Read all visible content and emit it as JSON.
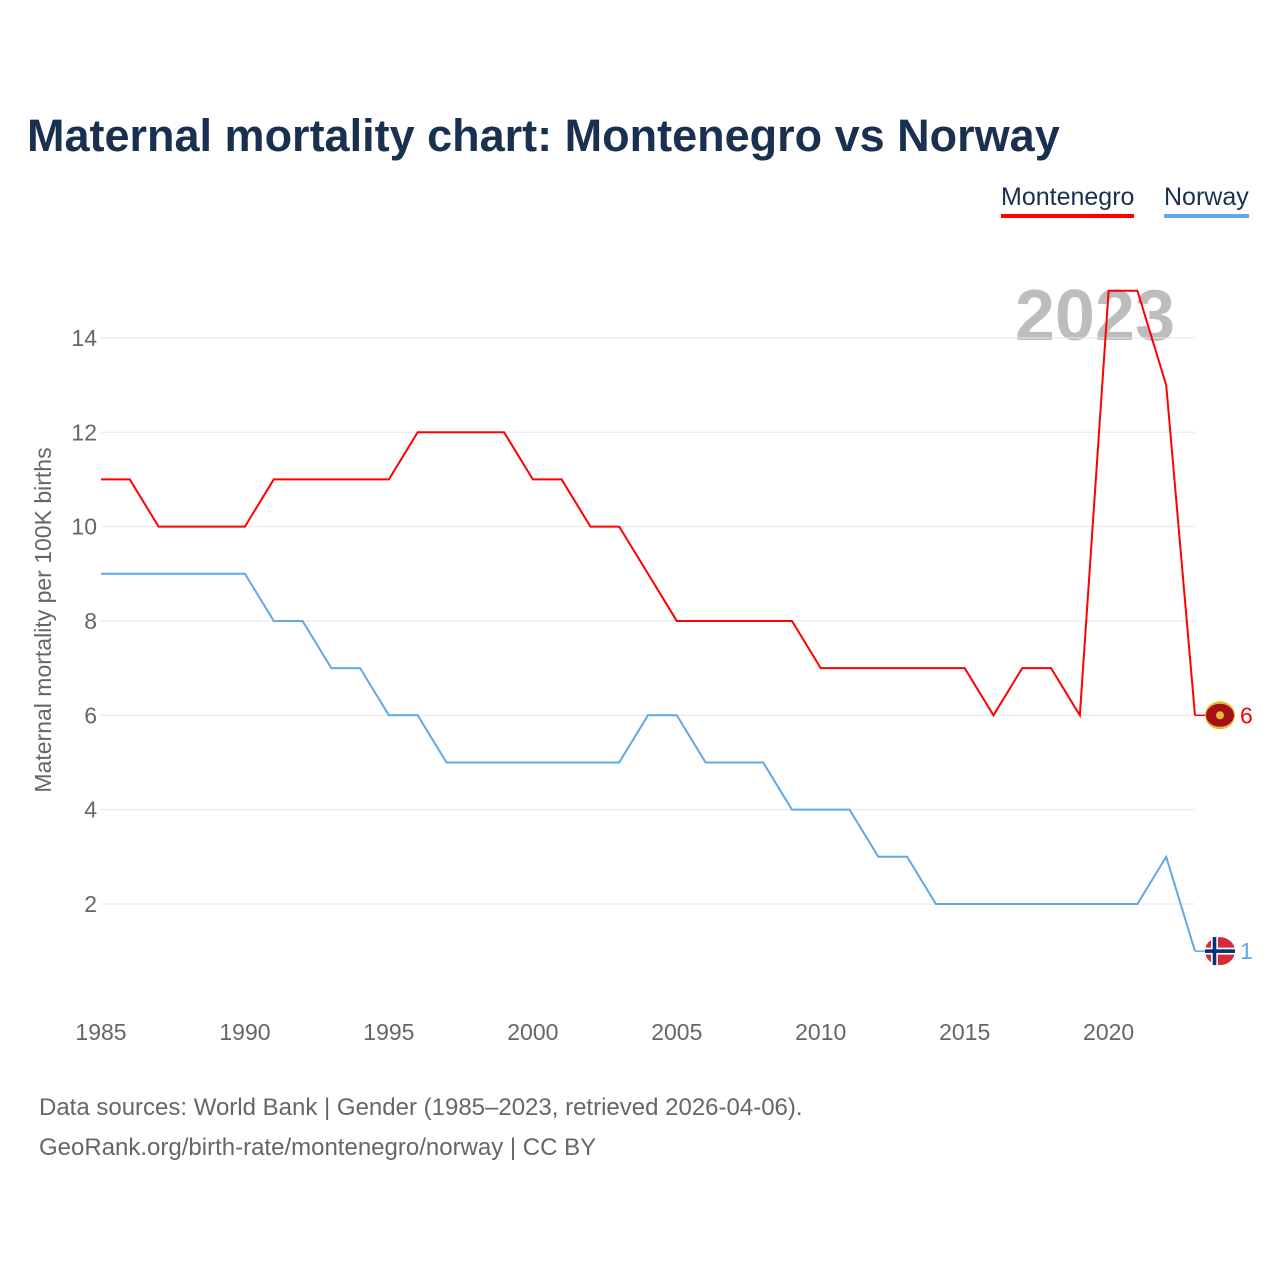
{
  "chart_data": {
    "type": "line",
    "title": "Maternal mortality chart: Montenegro vs Norway",
    "xlabel": "",
    "ylabel": "Maternal mortality per 100K births",
    "watermark_year": "2023",
    "x": [
      1985,
      1986,
      1987,
      1988,
      1989,
      1990,
      1991,
      1992,
      1993,
      1994,
      1995,
      1996,
      1997,
      1998,
      1999,
      2000,
      2001,
      2002,
      2003,
      2004,
      2005,
      2006,
      2007,
      2008,
      2009,
      2010,
      2011,
      2012,
      2013,
      2014,
      2015,
      2016,
      2017,
      2018,
      2019,
      2020,
      2021,
      2022,
      2023
    ],
    "xticks": [
      "1985",
      "1990",
      "1995",
      "2000",
      "2005",
      "2010",
      "2015",
      "2020"
    ],
    "yticks": [
      "2",
      "4",
      "6",
      "8",
      "10",
      "12",
      "14"
    ],
    "xlim": [
      1985,
      2023
    ],
    "ylim": [
      0,
      14.5
    ],
    "grid": true,
    "legend_placement": "top-right",
    "series": [
      {
        "name": "Montenegro",
        "color": "#ff0000",
        "end_label": "6",
        "values": [
          11,
          11,
          10,
          10,
          10,
          10,
          11,
          11,
          11,
          11,
          11,
          12,
          12,
          12,
          12,
          11,
          11,
          10,
          10,
          9,
          8,
          8,
          8,
          8,
          8,
          7,
          7,
          7,
          7,
          7,
          7,
          6,
          7,
          7,
          6,
          15,
          15,
          13,
          6
        ]
      },
      {
        "name": "Norway",
        "color": "#5fa8ea",
        "end_label": "1",
        "values": [
          9,
          9,
          9,
          9,
          9,
          9,
          8,
          8,
          7,
          7,
          6,
          6,
          5,
          5,
          5,
          5,
          5,
          5,
          5,
          6,
          6,
          5,
          5,
          5,
          4,
          4,
          4,
          3,
          3,
          2,
          2,
          2,
          2,
          2,
          2,
          2,
          2,
          3,
          1
        ]
      }
    ]
  },
  "footer": {
    "line1": "Data sources: World Bank | Gender (1985–2023, retrieved 2026-04-06).",
    "line2": "GeoRank.org/birth-rate/montenegro/norway | CC BY"
  }
}
